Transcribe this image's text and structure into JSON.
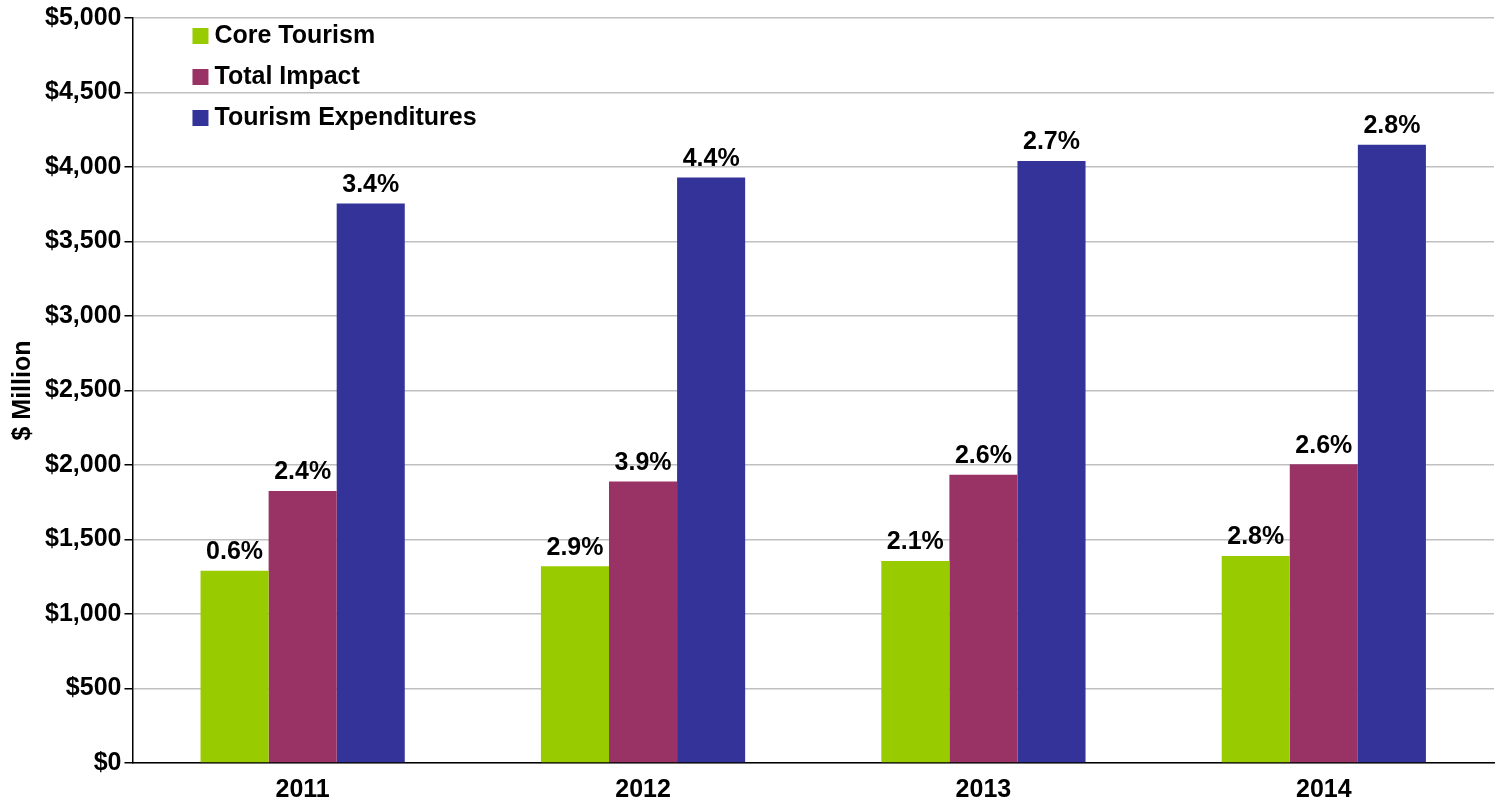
{
  "chart_data": {
    "type": "bar",
    "ylabel": "$ Million",
    "categories": [
      "2011",
      "2012",
      "2013",
      "2014"
    ],
    "series": [
      {
        "name": "Core Tourism",
        "color": "#99cc00",
        "values": [
          1290,
          1320,
          1355,
          1390
        ]
      },
      {
        "name": "Total Impact",
        "color": "#993366",
        "values": [
          1825,
          1890,
          1935,
          2005
        ]
      },
      {
        "name": "Tourism Expenditures",
        "color": "#333399",
        "values": [
          3755,
          3930,
          4040,
          4150
        ]
      }
    ],
    "annotations": [
      "0.6%",
      "2.9%",
      "2.1%",
      "2.8%",
      "2.4%",
      "3.9%",
      "2.6%",
      "2.6%",
      "3.4%",
      "4.4%",
      "2.7%",
      "2.8%"
    ],
    "ylim": [
      0,
      5000
    ],
    "yticks": [
      {
        "value": 0,
        "label": "$0"
      },
      {
        "value": 500,
        "label": "$500"
      },
      {
        "value": 1000,
        "label": "$1,000"
      },
      {
        "value": 1500,
        "label": "$1,500"
      },
      {
        "value": 2000,
        "label": "$2,000"
      },
      {
        "value": 2500,
        "label": "$2,500"
      },
      {
        "value": 3000,
        "label": "$3,000"
      },
      {
        "value": 3500,
        "label": "$3,500"
      },
      {
        "value": 4000,
        "label": "$4,000"
      },
      {
        "value": 4500,
        "label": "$4,500"
      },
      {
        "value": 5000,
        "label": "$5,000"
      }
    ],
    "grid": "y",
    "legend": "top left"
  }
}
